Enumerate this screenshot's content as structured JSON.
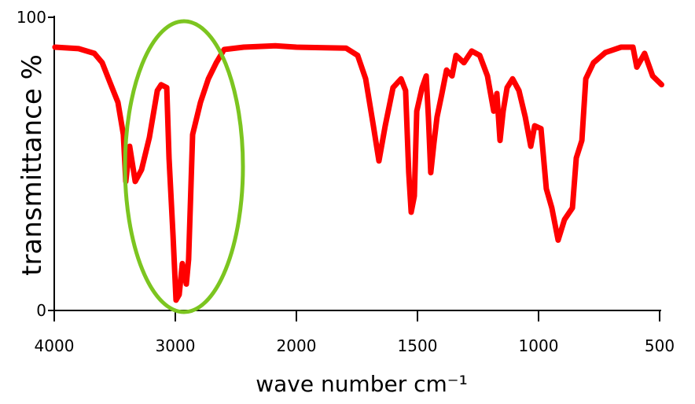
{
  "chart_data": {
    "type": "line",
    "ylabel": "transmittance %",
    "xlabel": "wave number cm⁻¹",
    "x": [
      3994,
      3799,
      3669,
      3604,
      3539,
      3474,
      3429,
      3409,
      3377,
      3331,
      3279,
      3214,
      3149,
      3117,
      3071,
      3052,
      3019,
      2994,
      2968,
      2942,
      2909,
      2890,
      2857,
      2792,
      2727,
      2662,
      2597,
      2435,
      2175,
      2000,
      1795,
      1747,
      1714,
      1682,
      1659,
      1633,
      1601,
      1568,
      1549,
      1536,
      1526,
      1513,
      1503,
      1481,
      1464,
      1455,
      1445,
      1432,
      1419,
      1399,
      1380,
      1357,
      1341,
      1308,
      1276,
      1243,
      1211,
      1185,
      1172,
      1159,
      1146,
      1130,
      1107,
      1081,
      1055,
      1032,
      1016,
      990,
      968,
      945,
      919,
      893,
      860,
      844,
      821,
      805,
      773,
      724,
      659,
      610,
      594,
      562,
      529,
      492
    ],
    "y": [
      89.8,
      89.3,
      87.7,
      84.5,
      77.7,
      71,
      60,
      44,
      56,
      44,
      48,
      59,
      75,
      77,
      76,
      52,
      25.5,
      3.5,
      5.4,
      16,
      9,
      17.4,
      60,
      71,
      79,
      84.5,
      89,
      89.8,
      90.3,
      89.8,
      89.5,
      87,
      79,
      63,
      51,
      63,
      76,
      79,
      75,
      47,
      33.5,
      39,
      68,
      76,
      80,
      66,
      47,
      57,
      66,
      74,
      82,
      80,
      87,
      84.5,
      88.5,
      87,
      80,
      68,
      74,
      58,
      68,
      76,
      79,
      75,
      66,
      56,
      63,
      62,
      41.5,
      35,
      24,
      31,
      35,
      52,
      58,
      79,
      84.5,
      88,
      89.8,
      89.8,
      83,
      87.7,
      80,
      77
    ],
    "color": "#ff0000",
    "xlim": [
      4000,
      500
    ],
    "xticks": [
      4000,
      3000,
      2000,
      1500,
      1000,
      500
    ],
    "ylim": [
      0,
      100
    ],
    "yticks": [
      0,
      100
    ]
  }
}
